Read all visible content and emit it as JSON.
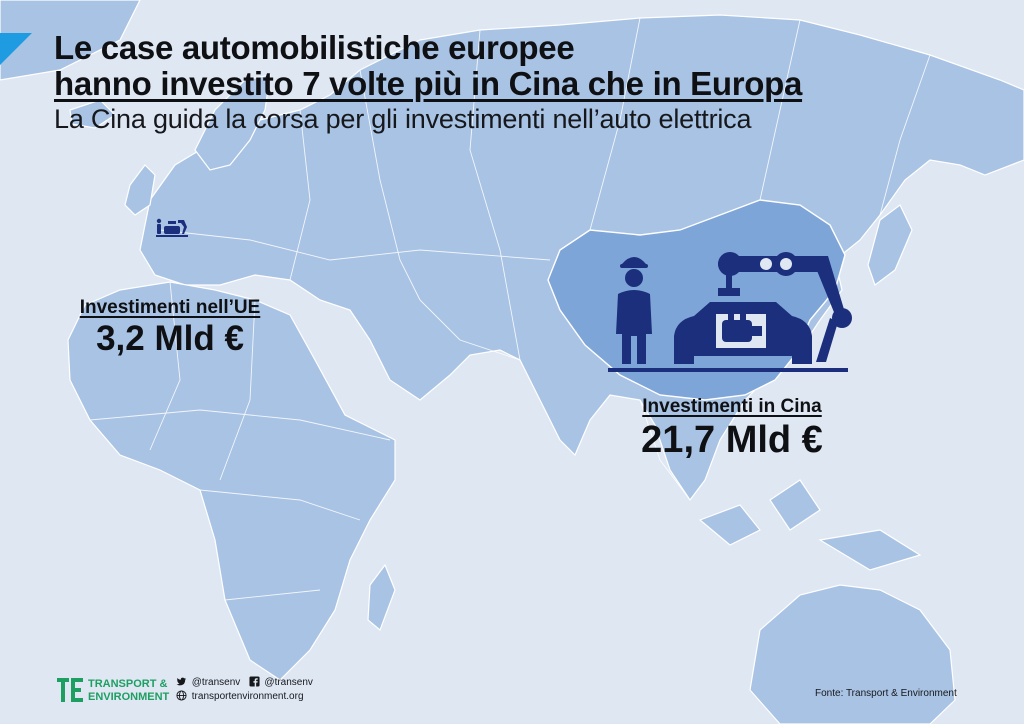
{
  "header": {
    "title_line1": "Le case automobilistiche europee",
    "title_line2": "hanno investito 7 volte più in Cina che in Europa",
    "subtitle": "La Cina guida la corsa per gli investimenti nell’auto elettrica"
  },
  "eu_investment": {
    "label": "Investimenti nell’UE",
    "value": "3,2 Mld €"
  },
  "china_investment": {
    "label": "Investimenti in Cina",
    "value": "21,7 Mld €"
  },
  "footer": {
    "brand_line1": "TRANSPORT &",
    "brand_line2": "ENVIRONMENT",
    "twitter": "@transenv",
    "facebook": "@transenv",
    "website": "transportenvironment.org",
    "source": "Fonte: Transport & Environment"
  },
  "colors": {
    "background_sea": "#dfe7f3",
    "land": "#a9c3e4",
    "china_highlight": "#7ea5d8",
    "icon_navy": "#1b2f7c",
    "accent_blue": "#1f9be2",
    "brand_green": "#1d9f62"
  },
  "icons": [
    "factory-worker-icon",
    "robot-arm-car-icon",
    "small-factory-icon"
  ]
}
